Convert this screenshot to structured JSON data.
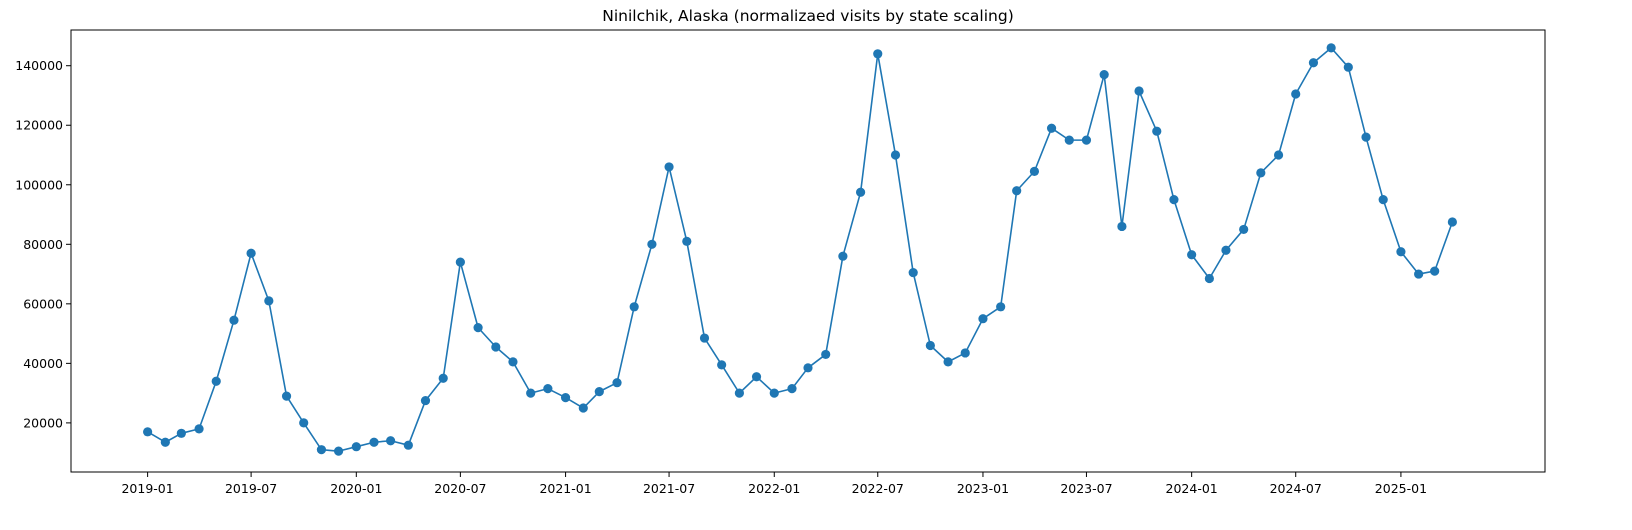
{
  "chart_data": {
    "type": "line",
    "title": "Ninilchik, Alaska (normalizaed visits by state scaling)",
    "xlabel": "",
    "ylabel": "",
    "x_ticks": [
      "2019-01",
      "2019-07",
      "2020-01",
      "2020-07",
      "2021-01",
      "2021-07",
      "2022-01",
      "2022-07",
      "2023-01",
      "2023-07",
      "2024-01",
      "2024-07",
      "2025-01"
    ],
    "y_ticks": [
      20000,
      40000,
      60000,
      80000,
      100000,
      120000,
      140000
    ],
    "xlim": [
      "2018-08-20",
      "2025-09-10"
    ],
    "ylim": [
      3500,
      152000
    ],
    "grid": false,
    "line_color": "#1f77b4",
    "marker": "circle",
    "x": [
      "2019-01-01",
      "2019-02-01",
      "2019-03-01",
      "2019-04-01",
      "2019-05-01",
      "2019-06-01",
      "2019-07-01",
      "2019-08-01",
      "2019-09-01",
      "2019-10-01",
      "2019-11-01",
      "2019-12-01",
      "2020-01-01",
      "2020-02-01",
      "2020-03-01",
      "2020-04-01",
      "2020-05-01",
      "2020-06-01",
      "2020-07-01",
      "2020-08-01",
      "2020-09-01",
      "2020-10-01",
      "2020-11-01",
      "2020-12-01",
      "2021-01-01",
      "2021-02-01",
      "2021-03-01",
      "2021-04-01",
      "2021-05-01",
      "2021-06-01",
      "2021-07-01",
      "2021-08-01",
      "2021-09-01",
      "2021-10-01",
      "2021-11-01",
      "2021-12-01",
      "2022-01-01",
      "2022-02-01",
      "2022-03-01",
      "2022-04-01",
      "2022-05-01",
      "2022-06-01",
      "2022-07-01",
      "2022-08-01",
      "2022-09-01",
      "2022-10-01",
      "2022-11-01",
      "2022-12-01",
      "2023-01-01",
      "2023-02-01",
      "2023-03-01",
      "2023-04-01",
      "2023-05-01",
      "2023-06-01",
      "2023-07-01",
      "2023-08-01",
      "2023-09-01",
      "2023-10-01",
      "2023-11-01",
      "2023-12-01",
      "2024-01-01",
      "2024-02-01",
      "2024-03-01",
      "2024-04-01",
      "2024-05-01",
      "2024-06-01",
      "2024-07-01",
      "2024-08-01",
      "2024-09-01",
      "2024-10-01",
      "2024-11-01",
      "2024-12-01",
      "2025-01-01",
      "2025-02-01",
      "2025-03-01",
      "2025-04-01"
    ],
    "values": [
      17000,
      13500,
      16500,
      18000,
      34000,
      54500,
      77000,
      61000,
      29000,
      20000,
      11000,
      10500,
      12000,
      13500,
      14000,
      12500,
      27500,
      35000,
      74000,
      52000,
      45500,
      40500,
      30000,
      31500,
      28500,
      25000,
      30500,
      33500,
      59000,
      80000,
      106000,
      81000,
      48500,
      39500,
      30000,
      35500,
      30000,
      31500,
      38500,
      43000,
      76000,
      97500,
      144000,
      110000,
      70500,
      46000,
      40500,
      43500,
      55000,
      59000,
      98000,
      104500,
      119000,
      115000,
      115000,
      137000,
      86000,
      131500,
      118000,
      95000,
      76500,
      68500,
      78000,
      85000,
      104000,
      110000,
      130500,
      141000,
      146000,
      139500,
      116000,
      95000,
      77500,
      70000,
      71000,
      87500
    ]
  }
}
